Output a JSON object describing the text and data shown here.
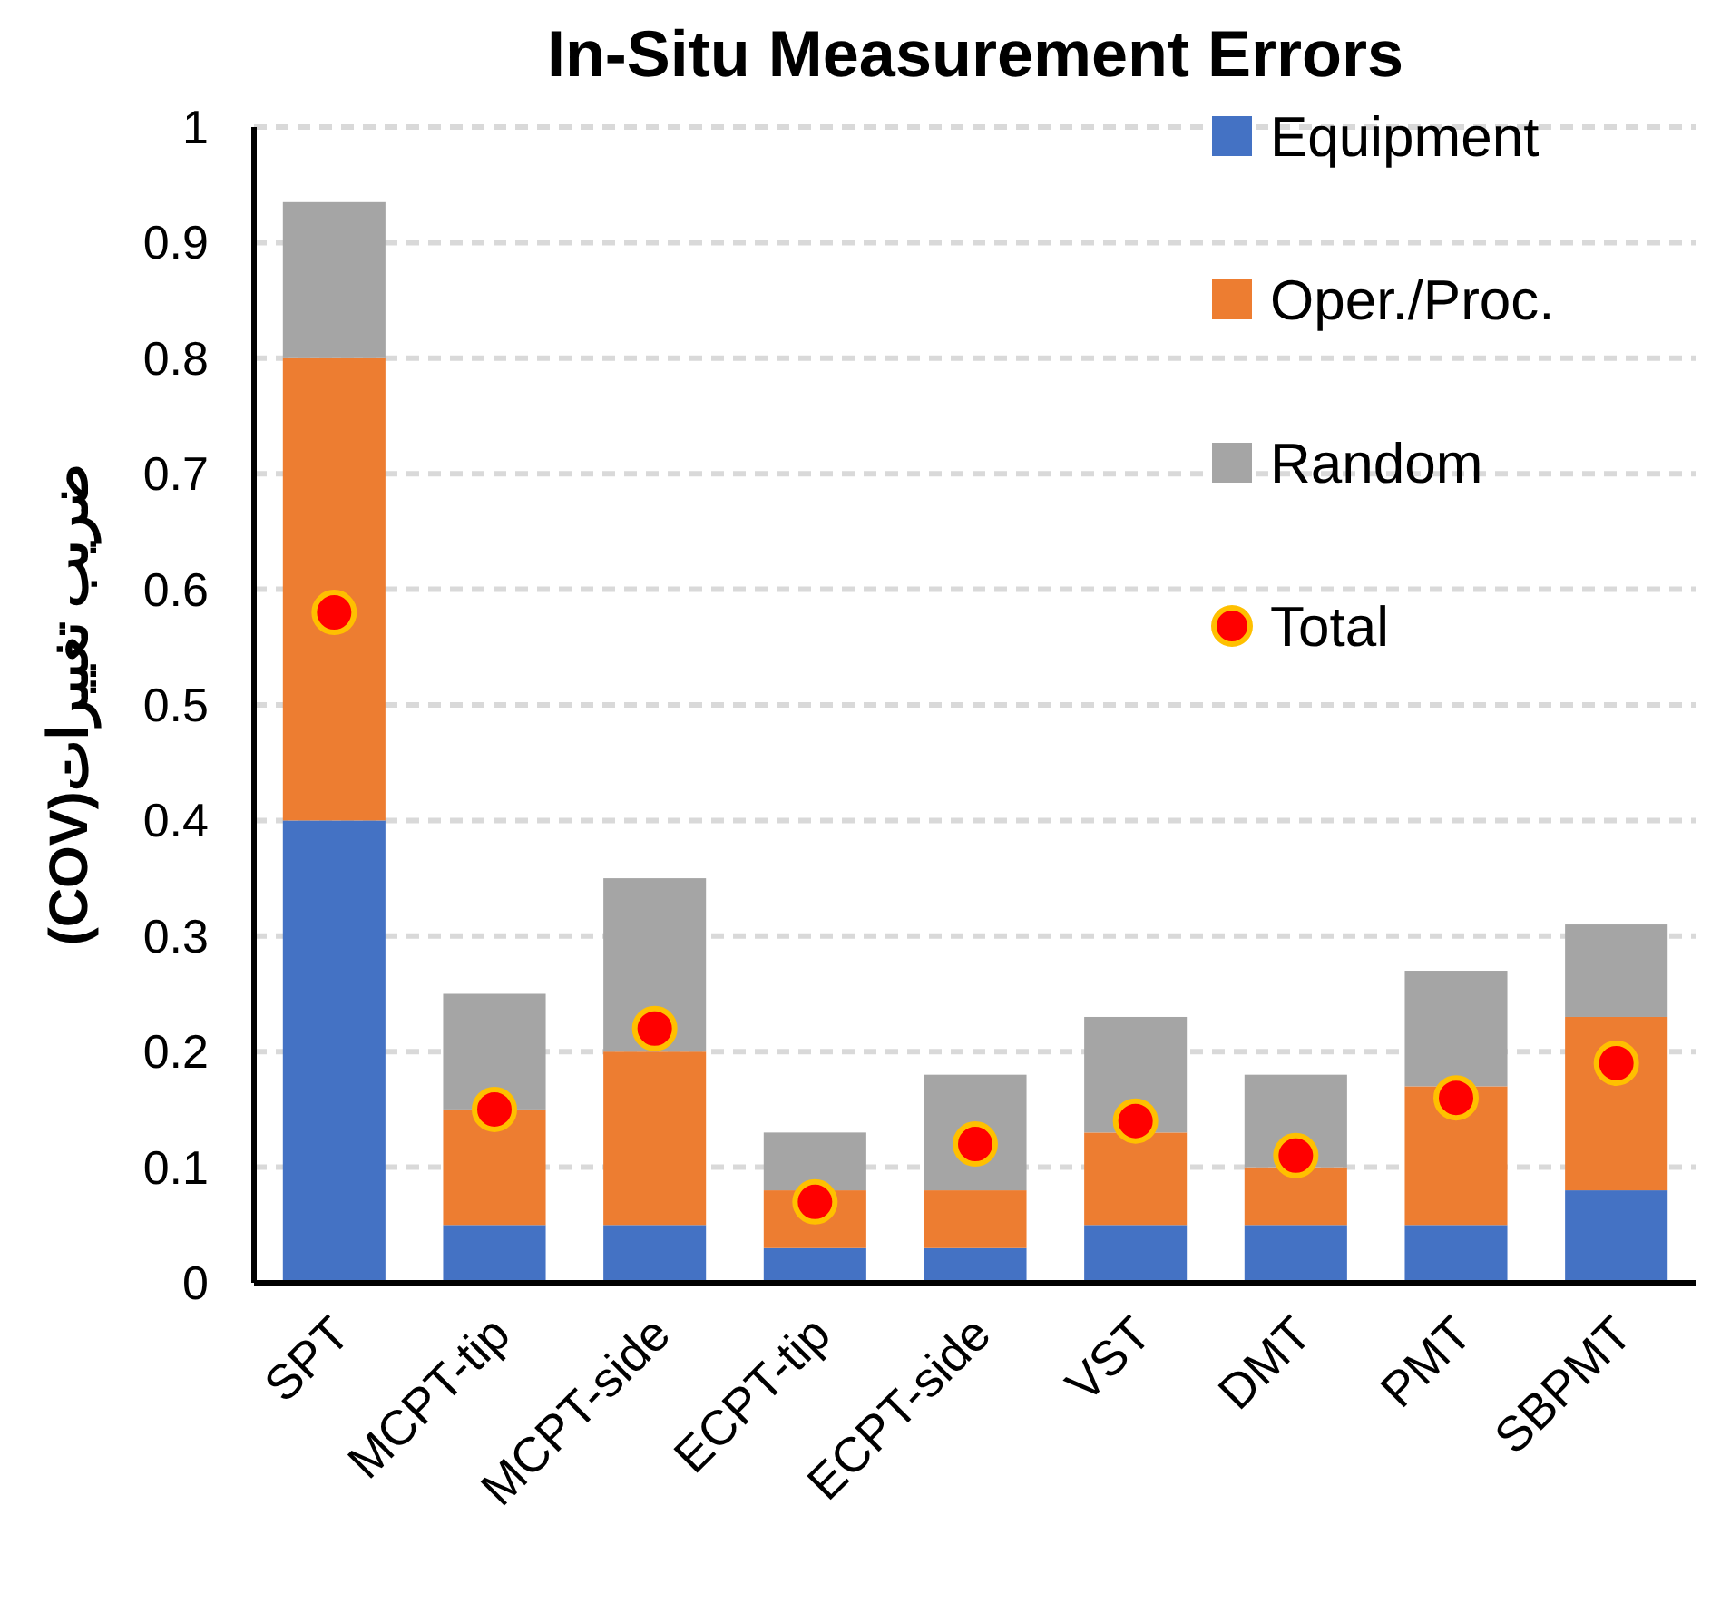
{
  "chart_data": {
    "type": "bar",
    "title": "In-Situ Measurement Errors",
    "ylabel": "ضریب تغییرات(COV)",
    "categories": [
      "SPT",
      "MCPT-tip",
      "MCPT-side",
      "ECPT-tip",
      "ECPT-side",
      "VST",
      "DMT",
      "PMT",
      "SBPMT"
    ],
    "stacked": true,
    "ylim": [
      0,
      1
    ],
    "yticks": [
      0,
      0.1,
      0.2,
      0.3,
      0.4,
      0.5,
      0.6,
      0.7,
      0.8,
      0.9,
      1
    ],
    "grid": "y",
    "legend": "top right",
    "series": [
      {
        "name": "Equipment",
        "color": "#4472c4",
        "values": [
          0.4,
          0.05,
          0.05,
          0.03,
          0.03,
          0.05,
          0.05,
          0.05,
          0.08
        ]
      },
      {
        "name": "Oper./Proc.",
        "color": "#ed7d31",
        "values": [
          0.4,
          0.1,
          0.15,
          0.05,
          0.05,
          0.08,
          0.05,
          0.12,
          0.15
        ]
      },
      {
        "name": "Random",
        "color": "#a5a5a5",
        "values": [
          0.135,
          0.1,
          0.15,
          0.05,
          0.1,
          0.1,
          0.08,
          0.1,
          0.08
        ]
      },
      {
        "name": "Total",
        "type": "scatter",
        "marker": "circle",
        "color": "#ff0000",
        "values": [
          0.58,
          0.15,
          0.22,
          0.07,
          0.12,
          0.14,
          0.11,
          0.16,
          0.19
        ]
      }
    ]
  }
}
